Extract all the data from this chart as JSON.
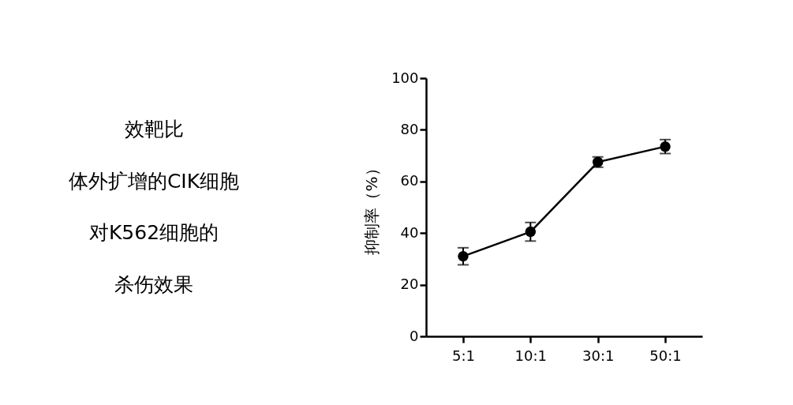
{
  "chart_data": {
    "type": "line",
    "annotations": [
      "效靶比",
      "体外扩增的CIK细胞",
      "对K562细胞的",
      "杀伤效果"
    ],
    "ylabel": "抑制率（%）",
    "categories": [
      "5:1",
      "10:1",
      "30:1",
      "50:1"
    ],
    "series": [
      {
        "color": "#000000",
        "values": [
          31,
          40.5,
          67.5,
          73.5
        ],
        "errors": [
          3.3,
          3.6,
          2,
          2.7
        ]
      }
    ],
    "ylim": [
      0,
      100
    ],
    "yticks": [
      0,
      20,
      40,
      60,
      80,
      100
    ],
    "grid": false,
    "marker": "circle",
    "line_style": "solid"
  }
}
